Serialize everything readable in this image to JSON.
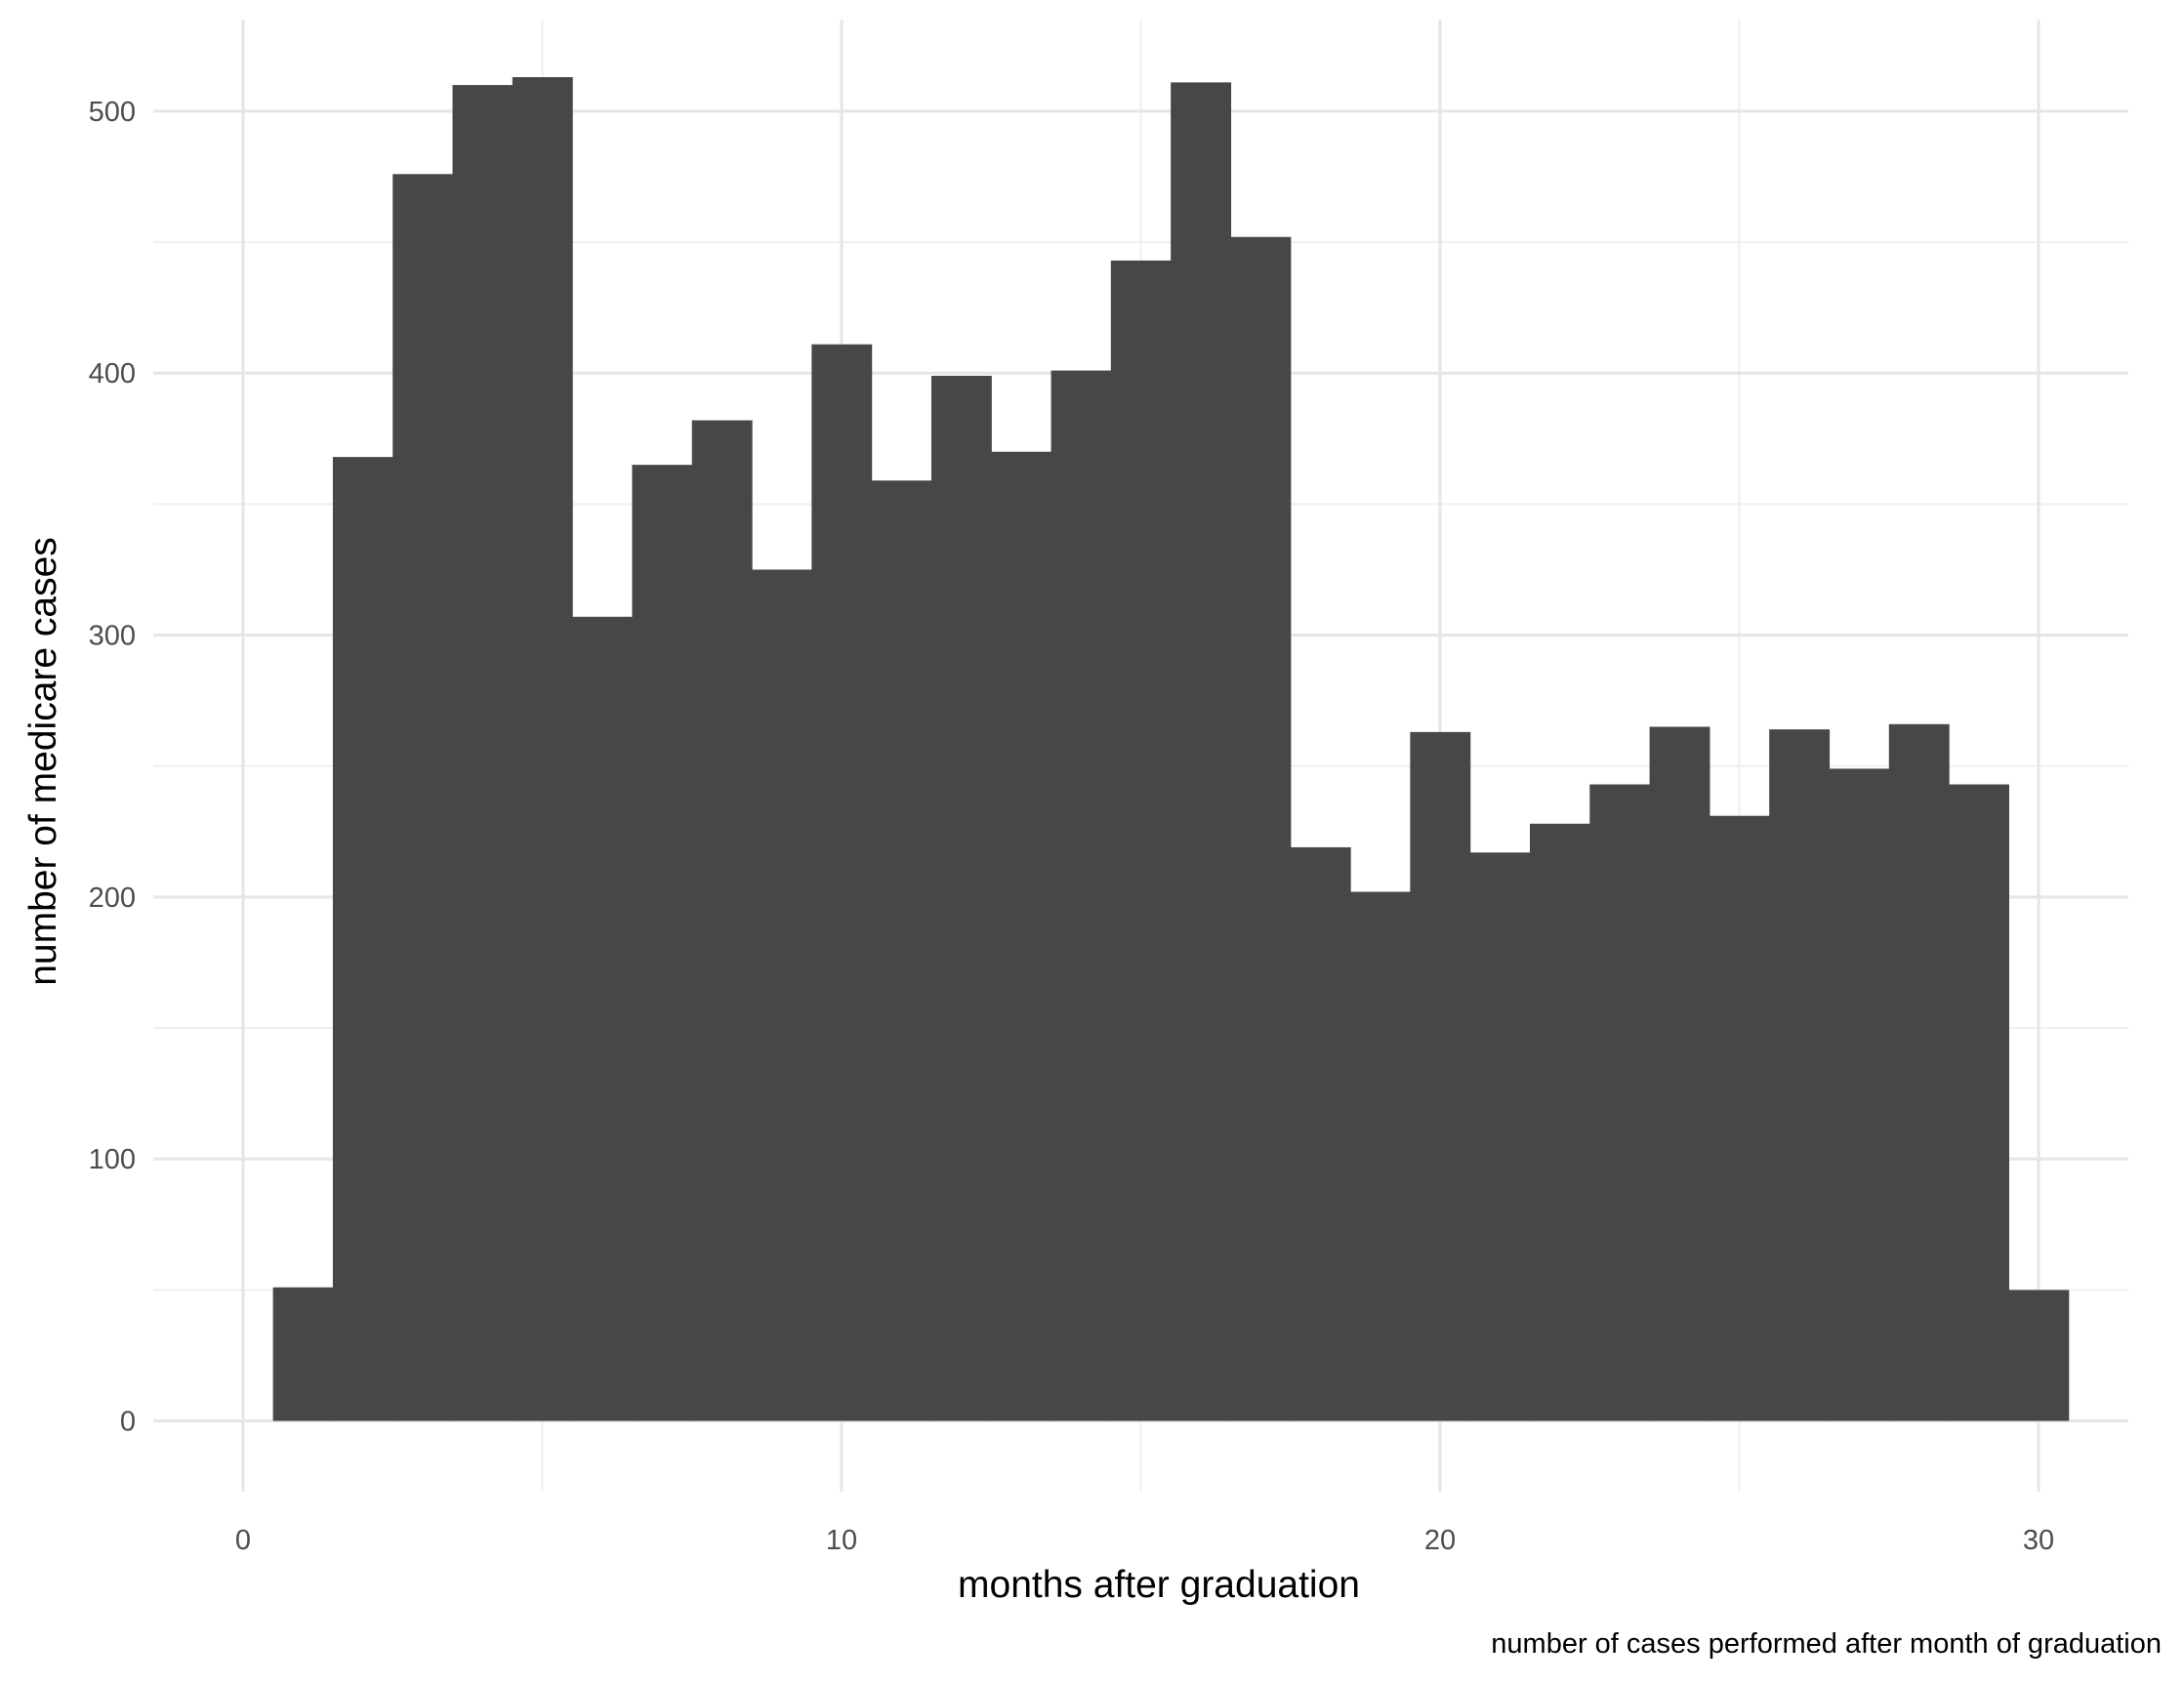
{
  "chart_data": {
    "type": "bar",
    "subtype": "histogram",
    "xlabel": "months after graduation",
    "ylabel": "number of medicare cases",
    "caption": "number of cases performed after month of graduation",
    "xlim": [
      -1.5,
      31.5
    ],
    "ylim": [
      -27,
      535
    ],
    "x_ticks": [
      0,
      10,
      20,
      30
    ],
    "y_ticks": [
      0,
      100,
      200,
      300,
      400,
      500
    ],
    "x_minor_ticks": [
      5,
      15,
      25
    ],
    "y_minor_ticks": [
      50,
      150,
      250,
      350,
      450
    ],
    "grid": true,
    "bin_width": 1,
    "bins": [
      {
        "x": 1,
        "count": 51
      },
      {
        "x": 2,
        "count": 368
      },
      {
        "x": 3,
        "count": 476
      },
      {
        "x": 4,
        "count": 510
      },
      {
        "x": 5,
        "count": 513
      },
      {
        "x": 6,
        "count": 307
      },
      {
        "x": 7,
        "count": 365
      },
      {
        "x": 8,
        "count": 382
      },
      {
        "x": 9,
        "count": 325
      },
      {
        "x": 10,
        "count": 411
      },
      {
        "x": 11,
        "count": 359
      },
      {
        "x": 12,
        "count": 399
      },
      {
        "x": 13,
        "count": 370
      },
      {
        "x": 14,
        "count": 401
      },
      {
        "x": 15,
        "count": 443
      },
      {
        "x": 16,
        "count": 511
      },
      {
        "x": 17,
        "count": 452
      },
      {
        "x": 18,
        "count": 219
      },
      {
        "x": 19,
        "count": 202
      },
      {
        "x": 20,
        "count": 263
      },
      {
        "x": 21,
        "count": 217
      },
      {
        "x": 22,
        "count": 228
      },
      {
        "x": 23,
        "count": 243
      },
      {
        "x": 24,
        "count": 265
      },
      {
        "x": 25,
        "count": 231
      },
      {
        "x": 26,
        "count": 264
      },
      {
        "x": 27,
        "count": 249
      },
      {
        "x": 28,
        "count": 266
      },
      {
        "x": 29,
        "count": 243
      },
      {
        "x": 30,
        "count": 50
      }
    ],
    "colors": {
      "bar": "#474747",
      "grid_major": "#e5e5e5",
      "grid_minor": "#efefef",
      "tick_text": "#4d4d4d",
      "title_text": "#000000",
      "background": "#ffffff"
    }
  }
}
